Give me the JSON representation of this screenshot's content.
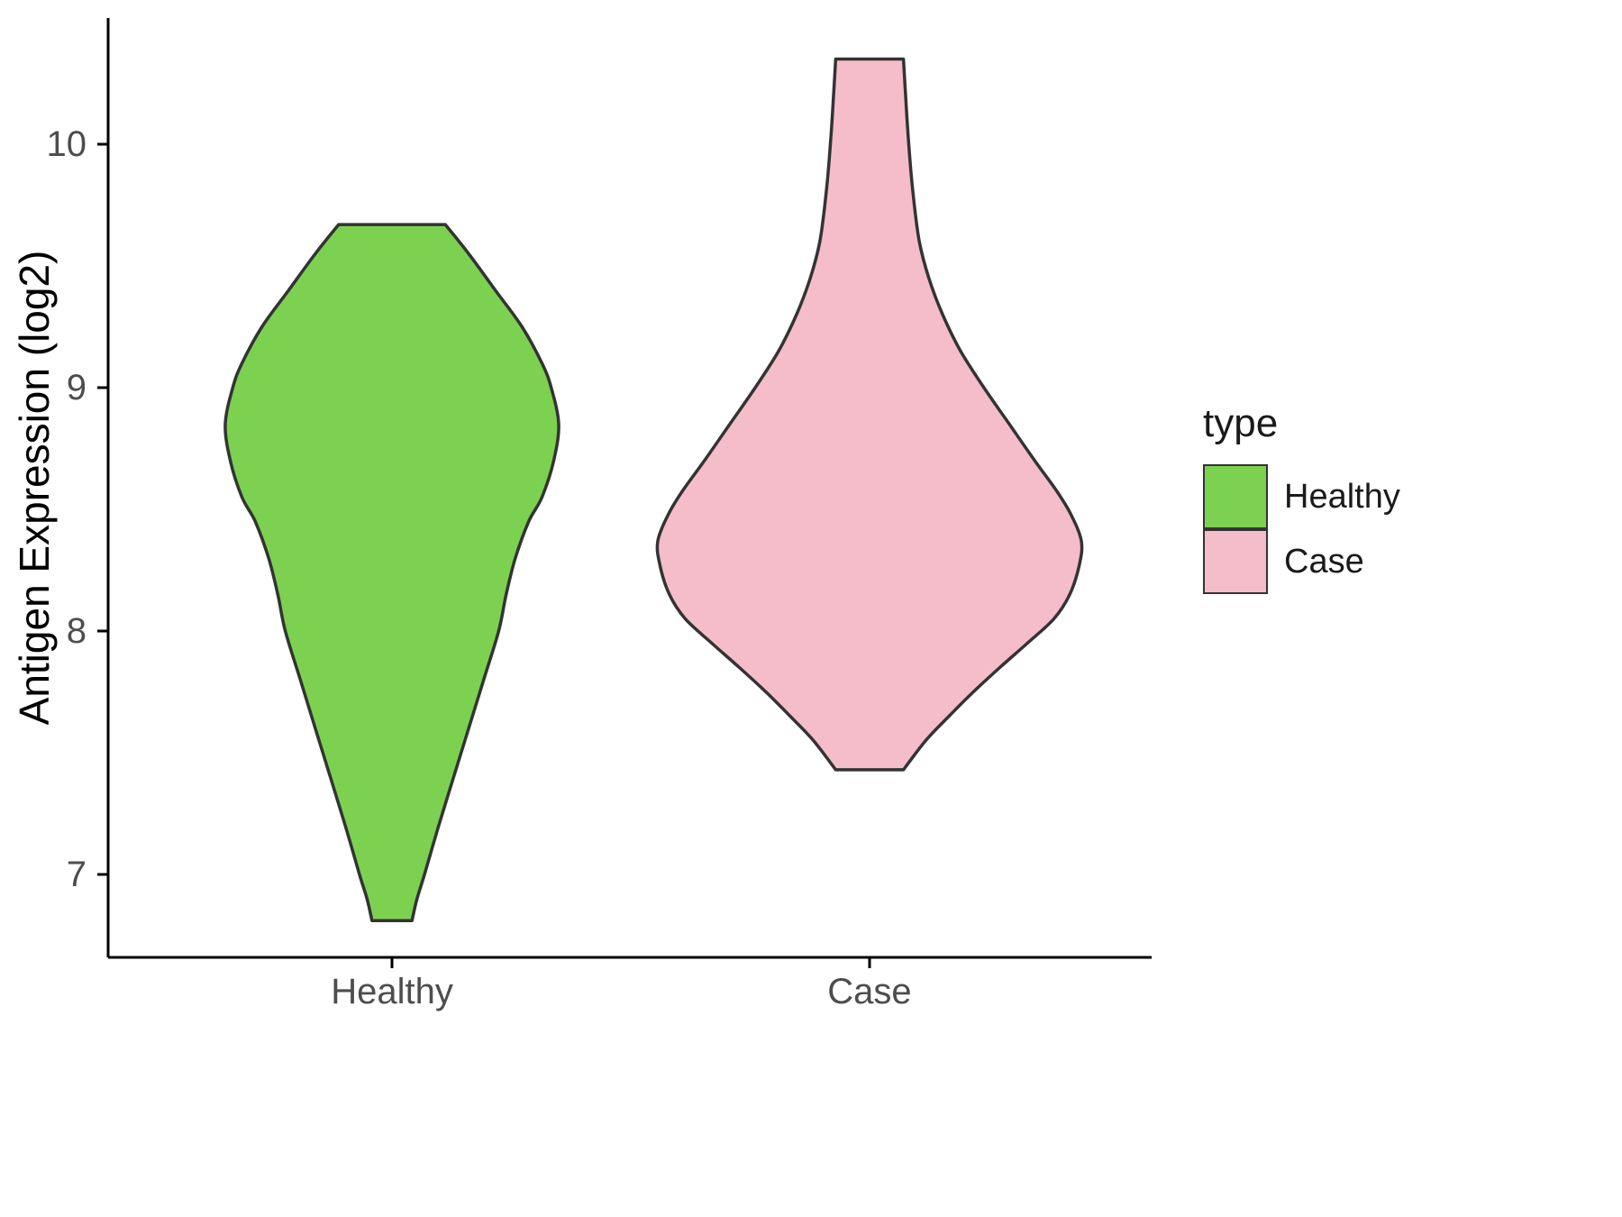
{
  "axes": {
    "y_label": "Antigen Expression (log2)",
    "y_ticks": [
      "7",
      "8",
      "9",
      "10"
    ],
    "x_categories": [
      "Healthy",
      "Case"
    ]
  },
  "legend": {
    "title": "type",
    "items": [
      {
        "label": "Healthy",
        "color": "#7CD250"
      },
      {
        "label": "Case",
        "color": "#F5BDC9"
      }
    ]
  },
  "chart_data": {
    "type": "violin",
    "title": "",
    "xlabel": "",
    "ylabel": "Antigen Expression (log2)",
    "ylim": [
      6.66,
      10.52
    ],
    "y_ticks": [
      7,
      8,
      9,
      10
    ],
    "categories": [
      "Healthy",
      "Case"
    ],
    "legend_title": "type",
    "legend_position": "right",
    "grid": false,
    "outline_color": "#333333",
    "series": [
      {
        "name": "Healthy",
        "color": "#7CD250",
        "range": [
          6.81,
          9.67
        ],
        "profile": [
          [
            9.67,
            0.32
          ],
          [
            9.55,
            0.46
          ],
          [
            9.4,
            0.62
          ],
          [
            9.25,
            0.78
          ],
          [
            9.1,
            0.9
          ],
          [
            9.0,
            0.955
          ],
          [
            8.85,
            1.0
          ],
          [
            8.7,
            0.97
          ],
          [
            8.55,
            0.9
          ],
          [
            8.45,
            0.82
          ],
          [
            8.3,
            0.74
          ],
          [
            8.15,
            0.685
          ],
          [
            8.0,
            0.64
          ],
          [
            7.8,
            0.55
          ],
          [
            7.6,
            0.46
          ],
          [
            7.4,
            0.37
          ],
          [
            7.2,
            0.28
          ],
          [
            7.0,
            0.195
          ],
          [
            6.9,
            0.15
          ],
          [
            6.81,
            0.12
          ]
        ]
      },
      {
        "name": "Case",
        "color": "#F5BDC9",
        "range": [
          7.43,
          10.35
        ],
        "profile": [
          [
            10.35,
            0.16
          ],
          [
            10.2,
            0.17
          ],
          [
            10.0,
            0.185
          ],
          [
            9.8,
            0.205
          ],
          [
            9.6,
            0.235
          ],
          [
            9.45,
            0.28
          ],
          [
            9.3,
            0.345
          ],
          [
            9.15,
            0.43
          ],
          [
            9.0,
            0.54
          ],
          [
            8.85,
            0.66
          ],
          [
            8.7,
            0.78
          ],
          [
            8.58,
            0.88
          ],
          [
            8.48,
            0.95
          ],
          [
            8.37,
            1.0
          ],
          [
            8.27,
            0.99
          ],
          [
            8.15,
            0.945
          ],
          [
            8.05,
            0.87
          ],
          [
            7.95,
            0.745
          ],
          [
            7.85,
            0.615
          ],
          [
            7.75,
            0.49
          ],
          [
            7.65,
            0.375
          ],
          [
            7.55,
            0.265
          ],
          [
            7.43,
            0.16
          ]
        ]
      }
    ]
  }
}
